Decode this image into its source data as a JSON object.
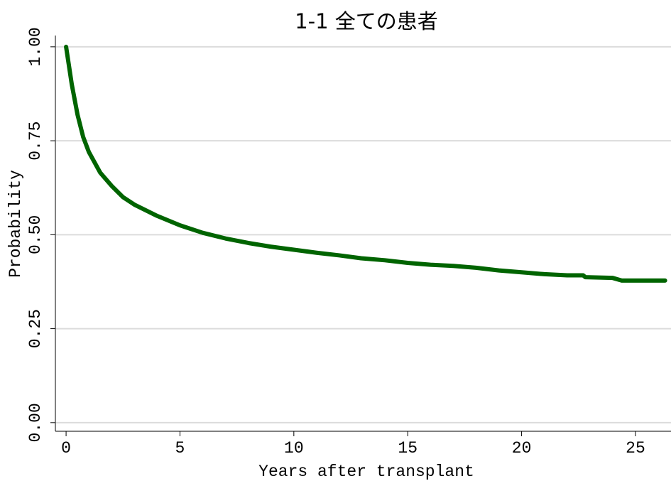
{
  "chart_data": {
    "type": "line",
    "title": "1-1 全ての患者",
    "x_label": "Years after transplant",
    "y_label": "Probability",
    "x": [
      0,
      0.25,
      0.5,
      0.75,
      1,
      1.5,
      2,
      2.5,
      3,
      4,
      5,
      6,
      7,
      8,
      9,
      10,
      11,
      12,
      13,
      14,
      15,
      16,
      17,
      18,
      19,
      20,
      21,
      22,
      22.7,
      22.8,
      24,
      24.4,
      25,
      26.3
    ],
    "values": [
      1.0,
      0.9,
      0.82,
      0.76,
      0.72,
      0.665,
      0.63,
      0.6,
      0.58,
      0.55,
      0.525,
      0.505,
      0.49,
      0.478,
      0.468,
      0.46,
      0.452,
      0.445,
      0.437,
      0.432,
      0.425,
      0.42,
      0.417,
      0.412,
      0.405,
      0.4,
      0.395,
      0.392,
      0.392,
      0.387,
      0.385,
      0.378,
      0.378,
      0.378
    ],
    "color": "#006400",
    "xlim": [
      -0.47,
      26.56
    ],
    "ylim": [
      -0.023,
      1.03
    ],
    "xticks": [
      0,
      5,
      10,
      15,
      20,
      25
    ],
    "yticks": [
      {
        "value": 0,
        "label": "0.00"
      },
      {
        "value": 0.25,
        "label": "0.25"
      },
      {
        "value": 0.5,
        "label": "0.50"
      },
      {
        "value": 0.75,
        "label": "0.75"
      },
      {
        "value": 1,
        "label": "1.00"
      }
    ],
    "grid": true
  }
}
